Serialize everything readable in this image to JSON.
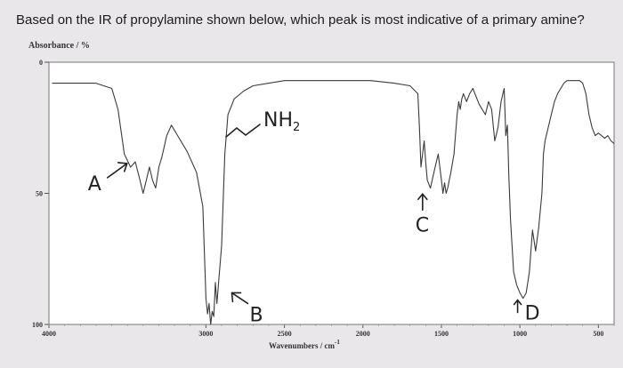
{
  "question": "Based on the IR of propylamine shown below, which peak is most indicative of a primary amine?",
  "chart_data": {
    "type": "line",
    "title": "",
    "ylabel": "Absorbance / %",
    "xlabel": "Wavenumbers / cm",
    "xlabel_superscript": "-1",
    "x_reversed": true,
    "xlim": [
      4000,
      400
    ],
    "ylim": [
      0,
      100
    ],
    "y_ticks": [
      {
        "value": 0,
        "label": "0"
      },
      {
        "value": 50,
        "label": "50"
      },
      {
        "value": 100,
        "label": "100"
      }
    ],
    "x_ticks": [
      {
        "value": 4000,
        "label": "4000"
      },
      {
        "value": 3000,
        "label": "3000"
      },
      {
        "value": 2500,
        "label": "2500"
      },
      {
        "value": 2000,
        "label": "2000"
      },
      {
        "value": 1500,
        "label": "1500"
      },
      {
        "value": 1000,
        "label": "1000"
      },
      {
        "value": 500,
        "label": "500"
      }
    ],
    "series": [
      {
        "x": [
          3980,
          3900,
          3800,
          3700,
          3600,
          3560,
          3520,
          3480,
          3450,
          3420,
          3400,
          3380,
          3360,
          3340,
          3320,
          3300,
          3280,
          3250,
          3220,
          3180,
          3120,
          3060,
          3020,
          3000,
          2990,
          2980,
          2970,
          2960,
          2950,
          2940,
          2930,
          2900,
          2880,
          2860,
          2820,
          2760,
          2700,
          2600,
          2500,
          2300,
          2100,
          1950,
          1800,
          1700,
          1650,
          1640,
          1630,
          1620,
          1610,
          1600,
          1590,
          1570,
          1540,
          1520,
          1500,
          1490,
          1480,
          1470,
          1460,
          1440,
          1420,
          1400,
          1390,
          1380,
          1370,
          1360,
          1340,
          1320,
          1300,
          1280,
          1260,
          1220,
          1200,
          1180,
          1160,
          1140,
          1120,
          1100,
          1090,
          1080,
          1070,
          1060,
          1040,
          1020,
          1000,
          980,
          960,
          940,
          920,
          900,
          880,
          860,
          850,
          840,
          820,
          800,
          780,
          760,
          740,
          720,
          700,
          680,
          660,
          640,
          620,
          600,
          580,
          560,
          540,
          520,
          500,
          480,
          460,
          440,
          420,
          400
        ],
        "y": [
          8,
          8,
          8,
          8,
          10,
          18,
          35,
          40,
          38,
          45,
          50,
          45,
          40,
          45,
          48,
          40,
          36,
          28,
          24,
          28,
          34,
          42,
          55,
          90,
          96,
          92,
          100,
          95,
          97,
          84,
          92,
          70,
          35,
          20,
          14,
          11,
          9,
          8,
          7,
          7,
          7,
          7,
          8,
          9,
          12,
          25,
          40,
          35,
          30,
          38,
          45,
          48,
          40,
          35,
          45,
          50,
          46,
          50,
          48,
          42,
          35,
          20,
          15,
          18,
          14,
          12,
          15,
          12,
          10,
          13,
          16,
          20,
          15,
          18,
          30,
          25,
          15,
          10,
          28,
          24,
          44,
          60,
          80,
          85,
          88,
          90,
          88,
          80,
          64,
          72,
          63,
          50,
          35,
          30,
          25,
          20,
          15,
          12,
          10,
          8,
          7,
          7,
          7,
          7,
          7,
          8,
          12,
          20,
          25,
          28,
          27,
          28,
          29,
          28,
          30,
          31
        ]
      }
    ],
    "annotations": [
      {
        "label": "A",
        "target_x": 3480,
        "target_y": 42
      },
      {
        "label": "B",
        "target_x": 2960,
        "target_y": 92
      },
      {
        "label": "C",
        "target_x": 1620,
        "target_y": 55
      },
      {
        "label": "D",
        "target_x": 1060,
        "target_y": 90
      },
      {
        "label": "NH2",
        "text": "NH",
        "subscript": "2"
      }
    ],
    "grid": false,
    "legend": "none"
  }
}
